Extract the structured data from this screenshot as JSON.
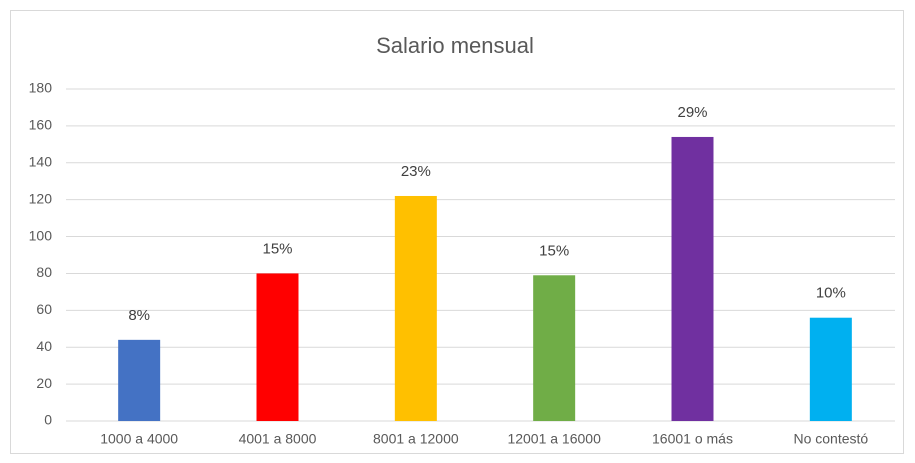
{
  "chart_data": {
    "type": "bar",
    "title": "Salario mensual",
    "categories": [
      "1000 a 4000",
      "4001 a 8000",
      "8001 a 12000",
      "12001 a 16000",
      "16001 o más",
      "No contestó"
    ],
    "values": [
      44,
      80,
      122,
      79,
      154,
      56
    ],
    "percent_labels": [
      "8%",
      "15%",
      "23%",
      "15%",
      "29%",
      "10%"
    ],
    "colors": [
      "#4472c4",
      "#ff0000",
      "#ffc000",
      "#70ad47",
      "#7030a0",
      "#00b0f0"
    ],
    "ylim": [
      0,
      180
    ],
    "yticks": [
      0,
      20,
      40,
      60,
      80,
      100,
      120,
      140,
      160,
      180
    ],
    "grid": true
  }
}
